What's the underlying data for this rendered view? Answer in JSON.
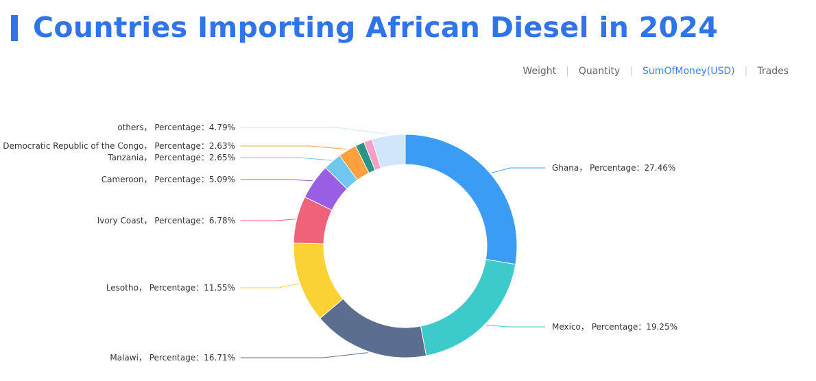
{
  "page": {
    "title": "Countries Importing African Diesel in 2024"
  },
  "tabs": {
    "items": [
      {
        "label": "Weight",
        "active": false
      },
      {
        "label": "Quantity",
        "active": false
      },
      {
        "label": "SumOfMoney(USD)",
        "active": true
      },
      {
        "label": "Trades",
        "active": false
      }
    ],
    "active_color": "#3b82f6"
  },
  "chart_data": {
    "type": "pie",
    "style": "donut",
    "label_template": "{name}， Percentage：{value}%",
    "slices": [
      {
        "name": "Ghana",
        "value": 27.46,
        "color": "#3a9cf5"
      },
      {
        "name": "Mexico",
        "value": 19.25,
        "color": "#3ccacb"
      },
      {
        "name": "Malawi",
        "value": 16.71,
        "color": "#5b6e90"
      },
      {
        "name": "Lesotho",
        "value": 11.55,
        "color": "#fad233"
      },
      {
        "name": "Ivory Coast",
        "value": 6.78,
        "color": "#f0617a"
      },
      {
        "name": "Cameroon",
        "value": 5.09,
        "color": "#995ee3"
      },
      {
        "name": "Tanzania",
        "value": 2.65,
        "color": "#6fc6ee"
      },
      {
        "name": "Democratic Republic of the Congo",
        "value": 2.63,
        "color": "#ff9f3e"
      },
      {
        "name": "",
        "value": 1.3,
        "color": "#2a9486"
      },
      {
        "name": "",
        "value": 1.2,
        "color": "#f6a0c9"
      },
      {
        "name": "others",
        "value": 4.79,
        "color": "#d2e6fb"
      }
    ]
  }
}
